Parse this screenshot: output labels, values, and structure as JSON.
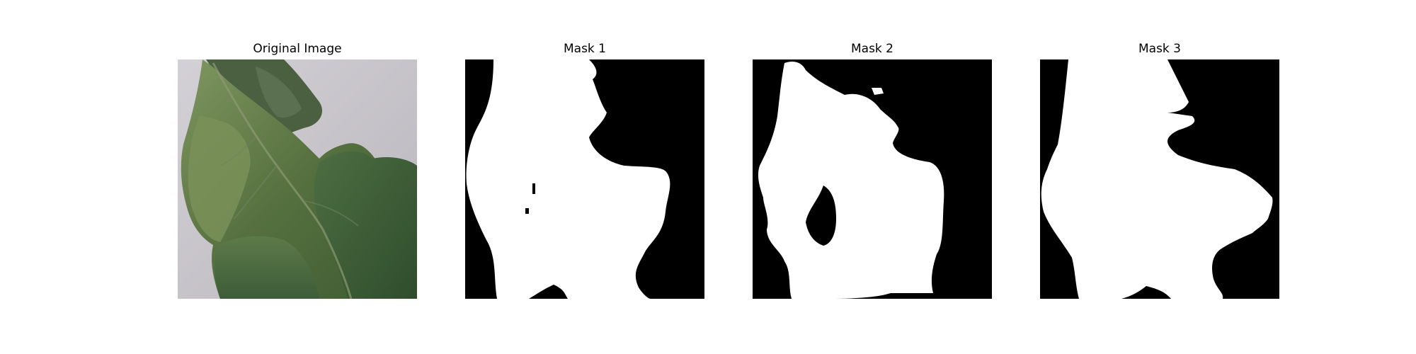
{
  "figure": {
    "panels": [
      {
        "title": "Original Image",
        "kind": "photo"
      },
      {
        "title": "Mask 1",
        "kind": "binary-mask"
      },
      {
        "title": "Mask 2",
        "kind": "binary-mask"
      },
      {
        "title": "Mask 3",
        "kind": "binary-mask"
      }
    ]
  },
  "colors": {
    "background": "#ffffff",
    "mask_foreground": "#ffffff",
    "mask_background": "#000000",
    "leaf_dark": "#3b5a32",
    "leaf_light": "#6f8a55",
    "paper_gray": "#c9c6cc"
  }
}
